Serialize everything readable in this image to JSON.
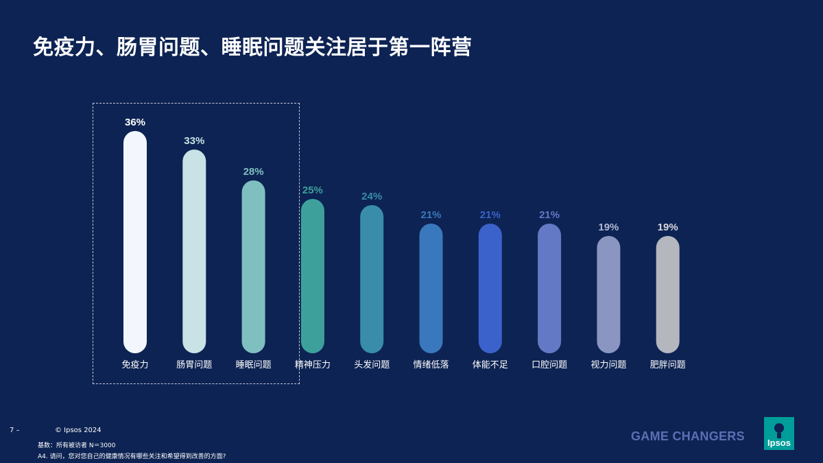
{
  "title": "免疫力、肠胃问题、睡眠问题关注居于第一阵营",
  "chart_data": {
    "type": "bar",
    "categories": [
      "免疫力",
      "肠胃问题",
      "睡眠问题",
      "精神压力",
      "头发问题",
      "情绪低落",
      "体能不足",
      "口腔问题",
      "视力问题",
      "肥胖问题"
    ],
    "values": [
      36,
      33,
      28,
      25,
      24,
      21,
      21,
      21,
      19,
      19
    ],
    "value_labels": [
      "36%",
      "33%",
      "28%",
      "25%",
      "24%",
      "21%",
      "21%",
      "21%",
      "19%",
      "19%"
    ],
    "unit": "%",
    "colors": [
      "#f3f6fc",
      "#c8e2e6",
      "#7fbfc0",
      "#3ea09b",
      "#3a8cab",
      "#3a78bd",
      "#3b62cb",
      "#6479c6",
      "#8a95c1",
      "#b5b7bf"
    ],
    "label_colors": [
      "#ffffff",
      "#c8e2e6",
      "#7fbfc0",
      "#3ea09b",
      "#3a8cab",
      "#3a78bd",
      "#3b62cb",
      "#6479c6",
      "#b2b8d4",
      "#d8d9dd"
    ],
    "highlighted_categories": [
      "免疫力",
      "肠胃问题",
      "睡眠问题"
    ],
    "grid": false,
    "legend": "none"
  },
  "footer": {
    "page_number": "7 –",
    "copyright": "© Ipsos 2024",
    "base": "基数：所有被访者  N＝3000",
    "question": "A4. 请问，您对您自己的健康情况有哪些关注和希望得到改善的方面?"
  },
  "brand": {
    "tagline": "GAME CHANGERS",
    "logo_text": "Ipsos",
    "logo_color": "#009d9a"
  }
}
